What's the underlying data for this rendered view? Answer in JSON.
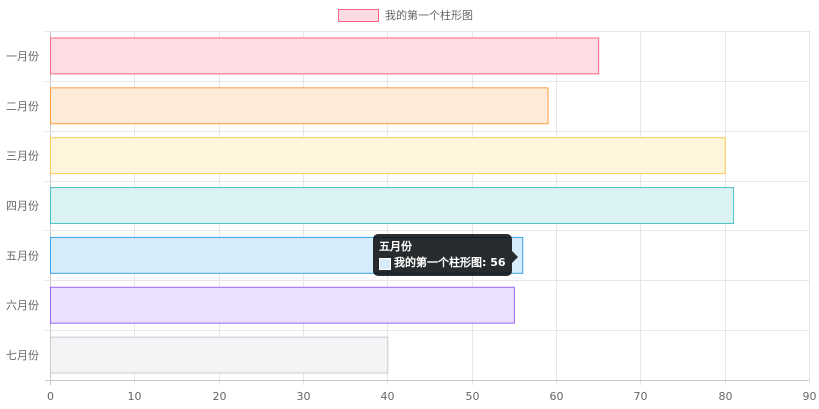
{
  "chart_data": {
    "type": "bar",
    "orientation": "horizontal",
    "categories": [
      "一月份",
      "二月份",
      "三月份",
      "四月份",
      "五月份",
      "六月份",
      "七月份"
    ],
    "series": [
      {
        "name": "我的第一个柱形图",
        "values": [
          65,
          59,
          80,
          81,
          56,
          55,
          40
        ]
      }
    ],
    "bar_fill_colors": [
      "#ffdce3",
      "#ffebd8",
      "#fff4dc",
      "#dbf2f2",
      "#d7ecfb",
      "#ebe0ff",
      "#f3f4f5"
    ],
    "bar_border_colors": [
      "#ff6384",
      "#ff9f40",
      "#ffcd56",
      "#4bc0c0",
      "#36a2eb",
      "#9966ff",
      "#c9cbcf"
    ],
    "xlim": [
      0,
      90
    ],
    "x_ticks": [
      "0",
      "10",
      "20",
      "30",
      "40",
      "50",
      "60",
      "70",
      "80",
      "90"
    ],
    "grid": true,
    "legend_position": "top",
    "legend_label": "我的第一个柱形图",
    "legend_fill": "#ffdce3",
    "legend_border": "#ff6384",
    "tooltip": {
      "title": "五月份",
      "label": "我的第一个柱形图: 56",
      "swatch_fill": "#d7ecfb",
      "swatch_border": "#36a2eb"
    }
  }
}
